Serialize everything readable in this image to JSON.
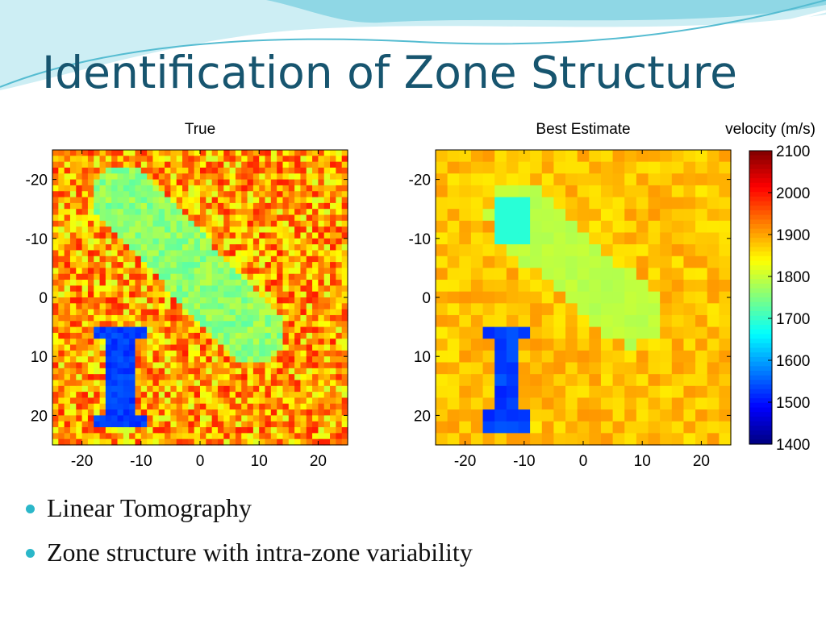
{
  "slide": {
    "title": "Identification of Zone Structure",
    "bullets": [
      "Linear Tomography",
      "Zone structure with intra-zone variability"
    ]
  },
  "colors": {
    "title": "#17556f",
    "bullet": "#2bb7c9",
    "wave_light": "#cdeef4",
    "wave_dark": "#55bcd1"
  },
  "chart_data": [
    {
      "type": "heatmap",
      "title": "True",
      "xlim": [
        -25,
        25
      ],
      "ylim": [
        -25,
        25
      ],
      "y_reversed": true,
      "xticks": [
        -20,
        -10,
        0,
        10,
        20
      ],
      "yticks": [
        -20,
        -10,
        0,
        10,
        20
      ],
      "clim": [
        1400,
        2100
      ],
      "field": {
        "background_velocity": 1900,
        "background_variability": "high",
        "zones": [
          {
            "shape": "elongated band",
            "from": [
              -13,
              -17
            ],
            "to": [
              9,
              6
            ],
            "velocity": 1760
          },
          {
            "shape": "bone",
            "x_range": [
              -18,
              -9
            ],
            "y_range": [
              5,
              22
            ],
            "velocity": 1530
          }
        ]
      }
    },
    {
      "type": "heatmap",
      "title": "Best Estimate",
      "xlim": [
        -25,
        25
      ],
      "ylim": [
        -25,
        25
      ],
      "y_reversed": true,
      "xticks": [
        -20,
        -10,
        0,
        10,
        20
      ],
      "yticks": [
        -20,
        -10,
        0,
        10,
        20
      ],
      "clim": [
        1400,
        2100
      ],
      "field": {
        "background_velocity": 1880,
        "background_variability": "low",
        "zones": [
          {
            "shape": "elongated band",
            "from": [
              -11,
              -14
            ],
            "to": [
              8,
              3
            ],
            "velocity": 1790
          },
          {
            "shape": "square patch",
            "x_range": [
              -15,
              -10
            ],
            "y_range": [
              -17,
              -10
            ],
            "velocity": 1690
          },
          {
            "shape": "bone",
            "x_range": [
              -17,
              -9
            ],
            "y_range": [
              5,
              22
            ],
            "velocity": 1530
          }
        ]
      }
    },
    {
      "type": "colorbar",
      "label": "velocity (m/s)",
      "range": [
        1400,
        2100
      ],
      "ticks": [
        "2100",
        "2000",
        "1900",
        "1800",
        "1700",
        "1600",
        "1500",
        "1400"
      ]
    }
  ]
}
